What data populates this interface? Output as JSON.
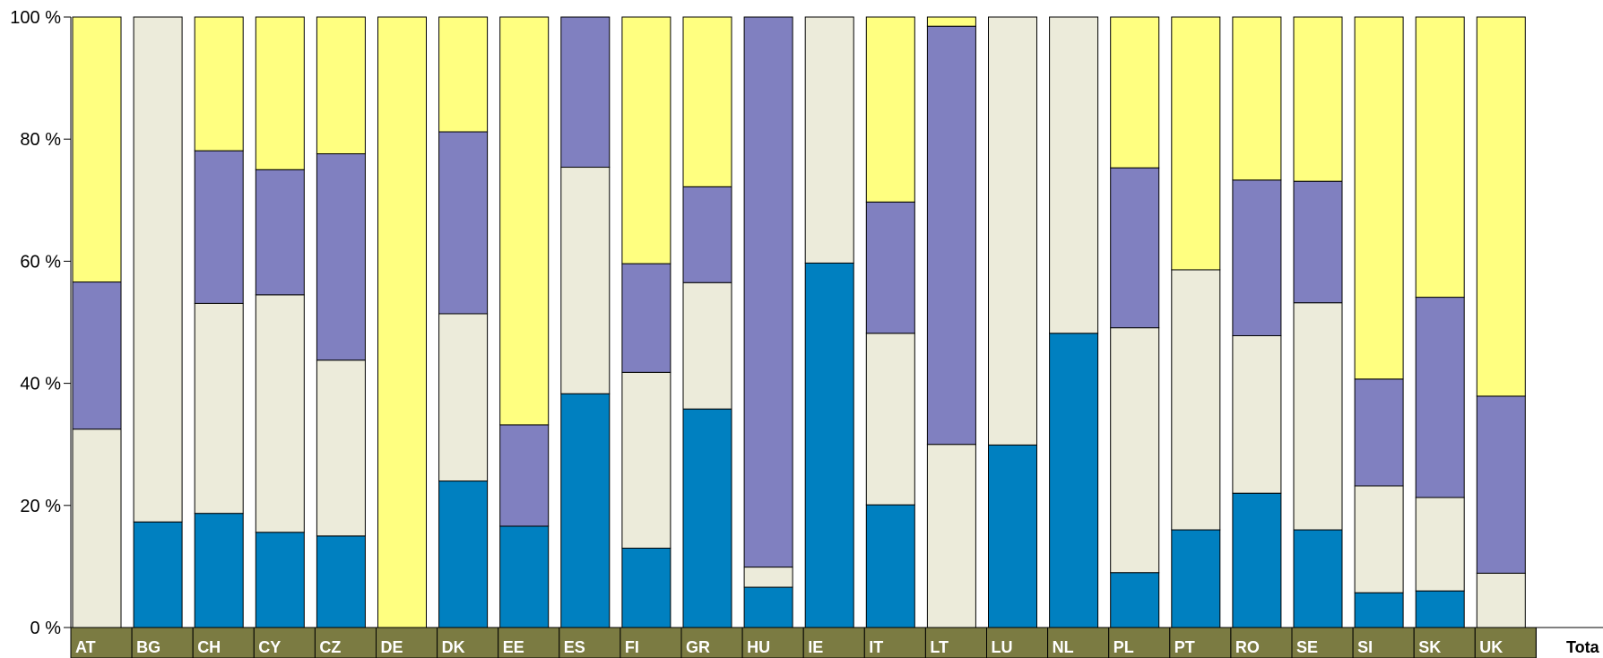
{
  "chart_data": {
    "type": "bar",
    "stacked": true,
    "percent": true,
    "categories": [
      "AT",
      "BG",
      "CH",
      "CY",
      "CZ",
      "DE",
      "DK",
      "EE",
      "ES",
      "FI",
      "GR",
      "HU",
      "IE",
      "IT",
      "LT",
      "LU",
      "NL",
      "PL",
      "PT",
      "RO",
      "SE",
      "SI",
      "SK",
      "UK"
    ],
    "trailing_label": "Tota",
    "series": [
      {
        "color": "#0080c0",
        "values": [
          0,
          17.3,
          18.7,
          15.6,
          15,
          0,
          24,
          16.6,
          38.3,
          13,
          35.8,
          6.6,
          59.7,
          20.1,
          0,
          29.9,
          48.2,
          9,
          16,
          22,
          16,
          5.7,
          6,
          0
        ]
      },
      {
        "color": "#ecebda",
        "values": [
          32.5,
          82.7,
          34.4,
          38.9,
          28.8,
          0,
          27.4,
          0,
          37.1,
          28.8,
          20.7,
          3.3,
          40.3,
          28.1,
          30,
          70.1,
          51.8,
          40.1,
          42.6,
          25.8,
          37.2,
          17.5,
          15.3,
          8.9
        ]
      },
      {
        "color": "#8080c0",
        "values": [
          24.1,
          0,
          25,
          20.5,
          33.8,
          0,
          29.8,
          16.6,
          24.6,
          17.8,
          15.7,
          90.1,
          0,
          21.5,
          68.5,
          0,
          0,
          26.2,
          0,
          25.5,
          19.9,
          17.5,
          32.8,
          29
        ]
      },
      {
        "color": "#ffff80",
        "values": [
          43.4,
          0,
          21.9,
          25,
          22.4,
          100,
          18.8,
          66.8,
          0,
          40.4,
          27.8,
          0,
          0,
          30.3,
          1.5,
          0,
          0,
          24.7,
          41.4,
          26.7,
          26.9,
          59.3,
          45.9,
          62.1
        ]
      }
    ],
    "yticks": [
      "0 %",
      "20 %",
      "40 %",
      "60 %",
      "80 %",
      "100 %"
    ],
    "ylim": [
      0,
      100
    ],
    "grid": false,
    "label_band_color": "#7b7b42"
  }
}
